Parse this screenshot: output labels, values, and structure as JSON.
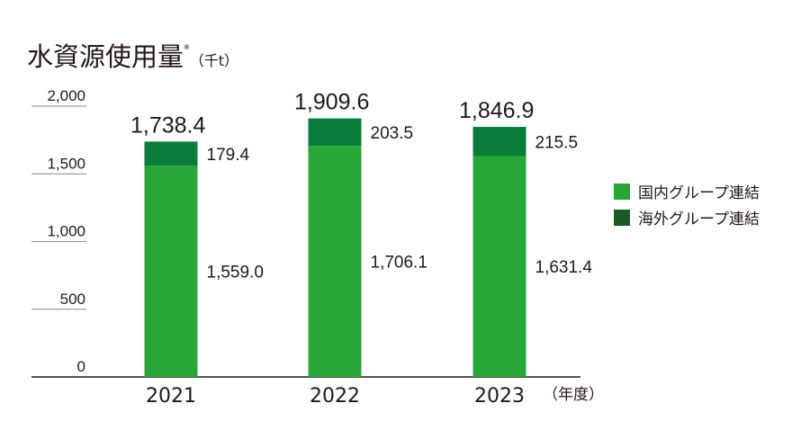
{
  "title": {
    "text": "水資源使用量",
    "mark": "※",
    "unit": "（千t）"
  },
  "colors": {
    "domestic": "#27a737",
    "overseas": "#0b7d3b",
    "legend_overseas": "#1a5b23",
    "axis": "#231815",
    "gridline": "#888888"
  },
  "chart_data": {
    "type": "bar",
    "stacked": true,
    "title": "水資源使用量",
    "unit": "（千t）",
    "x_unit_label": "（年度）",
    "categories": [
      "2021",
      "2022",
      "2023"
    ],
    "series": [
      {
        "name": "国内グループ連結",
        "values": [
          1559.0,
          1706.1,
          1631.4
        ],
        "labels": [
          "1,559.0",
          "1,706.1",
          "1,631.4"
        ]
      },
      {
        "name": "海外グループ連結",
        "values": [
          179.4,
          203.5,
          215.5
        ],
        "labels": [
          "179.4",
          "203.5",
          "215.5"
        ]
      }
    ],
    "totals": [
      1738.4,
      1909.6,
      1846.9
    ],
    "total_labels": [
      "1,738.4",
      "1,909.6",
      "1,846.9"
    ],
    "ylim": [
      0,
      2000
    ],
    "yticks": [
      0,
      500,
      1000,
      1500,
      2000
    ],
    "ytick_labels": [
      "0",
      "500",
      "1,000",
      "1,500",
      "2,000"
    ],
    "legend_position": "right",
    "grid": false
  }
}
